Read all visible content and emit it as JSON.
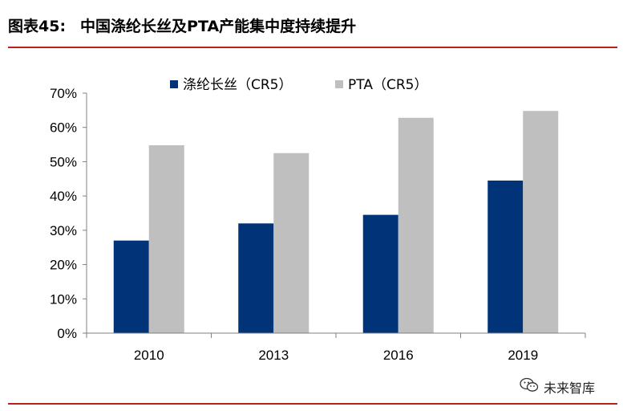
{
  "figure": {
    "number": "图表45:",
    "title": "中国涤纶长丝及PTA产能集中度持续提升"
  },
  "watermark": {
    "text": "未来智库",
    "icon": "wechat-icon"
  },
  "colors": {
    "rule": "#b7201f",
    "series1": "#003378",
    "series2": "#bfbfbf",
    "axis": "#808080"
  },
  "chart_data": {
    "type": "bar",
    "categories": [
      "2010",
      "2013",
      "2016",
      "2019"
    ],
    "series": [
      {
        "name": "涤纶长丝（CR5）",
        "values": [
          0.27,
          0.32,
          0.345,
          0.445
        ],
        "color": "#003378"
      },
      {
        "name": "PTA（CR5）",
        "values": [
          0.548,
          0.525,
          0.628,
          0.648
        ],
        "color": "#bfbfbf"
      }
    ],
    "ylim": [
      0,
      0.7
    ],
    "yticks": [
      "0%",
      "10%",
      "20%",
      "30%",
      "40%",
      "50%",
      "60%",
      "70%"
    ],
    "grid": false,
    "legend": "top"
  }
}
